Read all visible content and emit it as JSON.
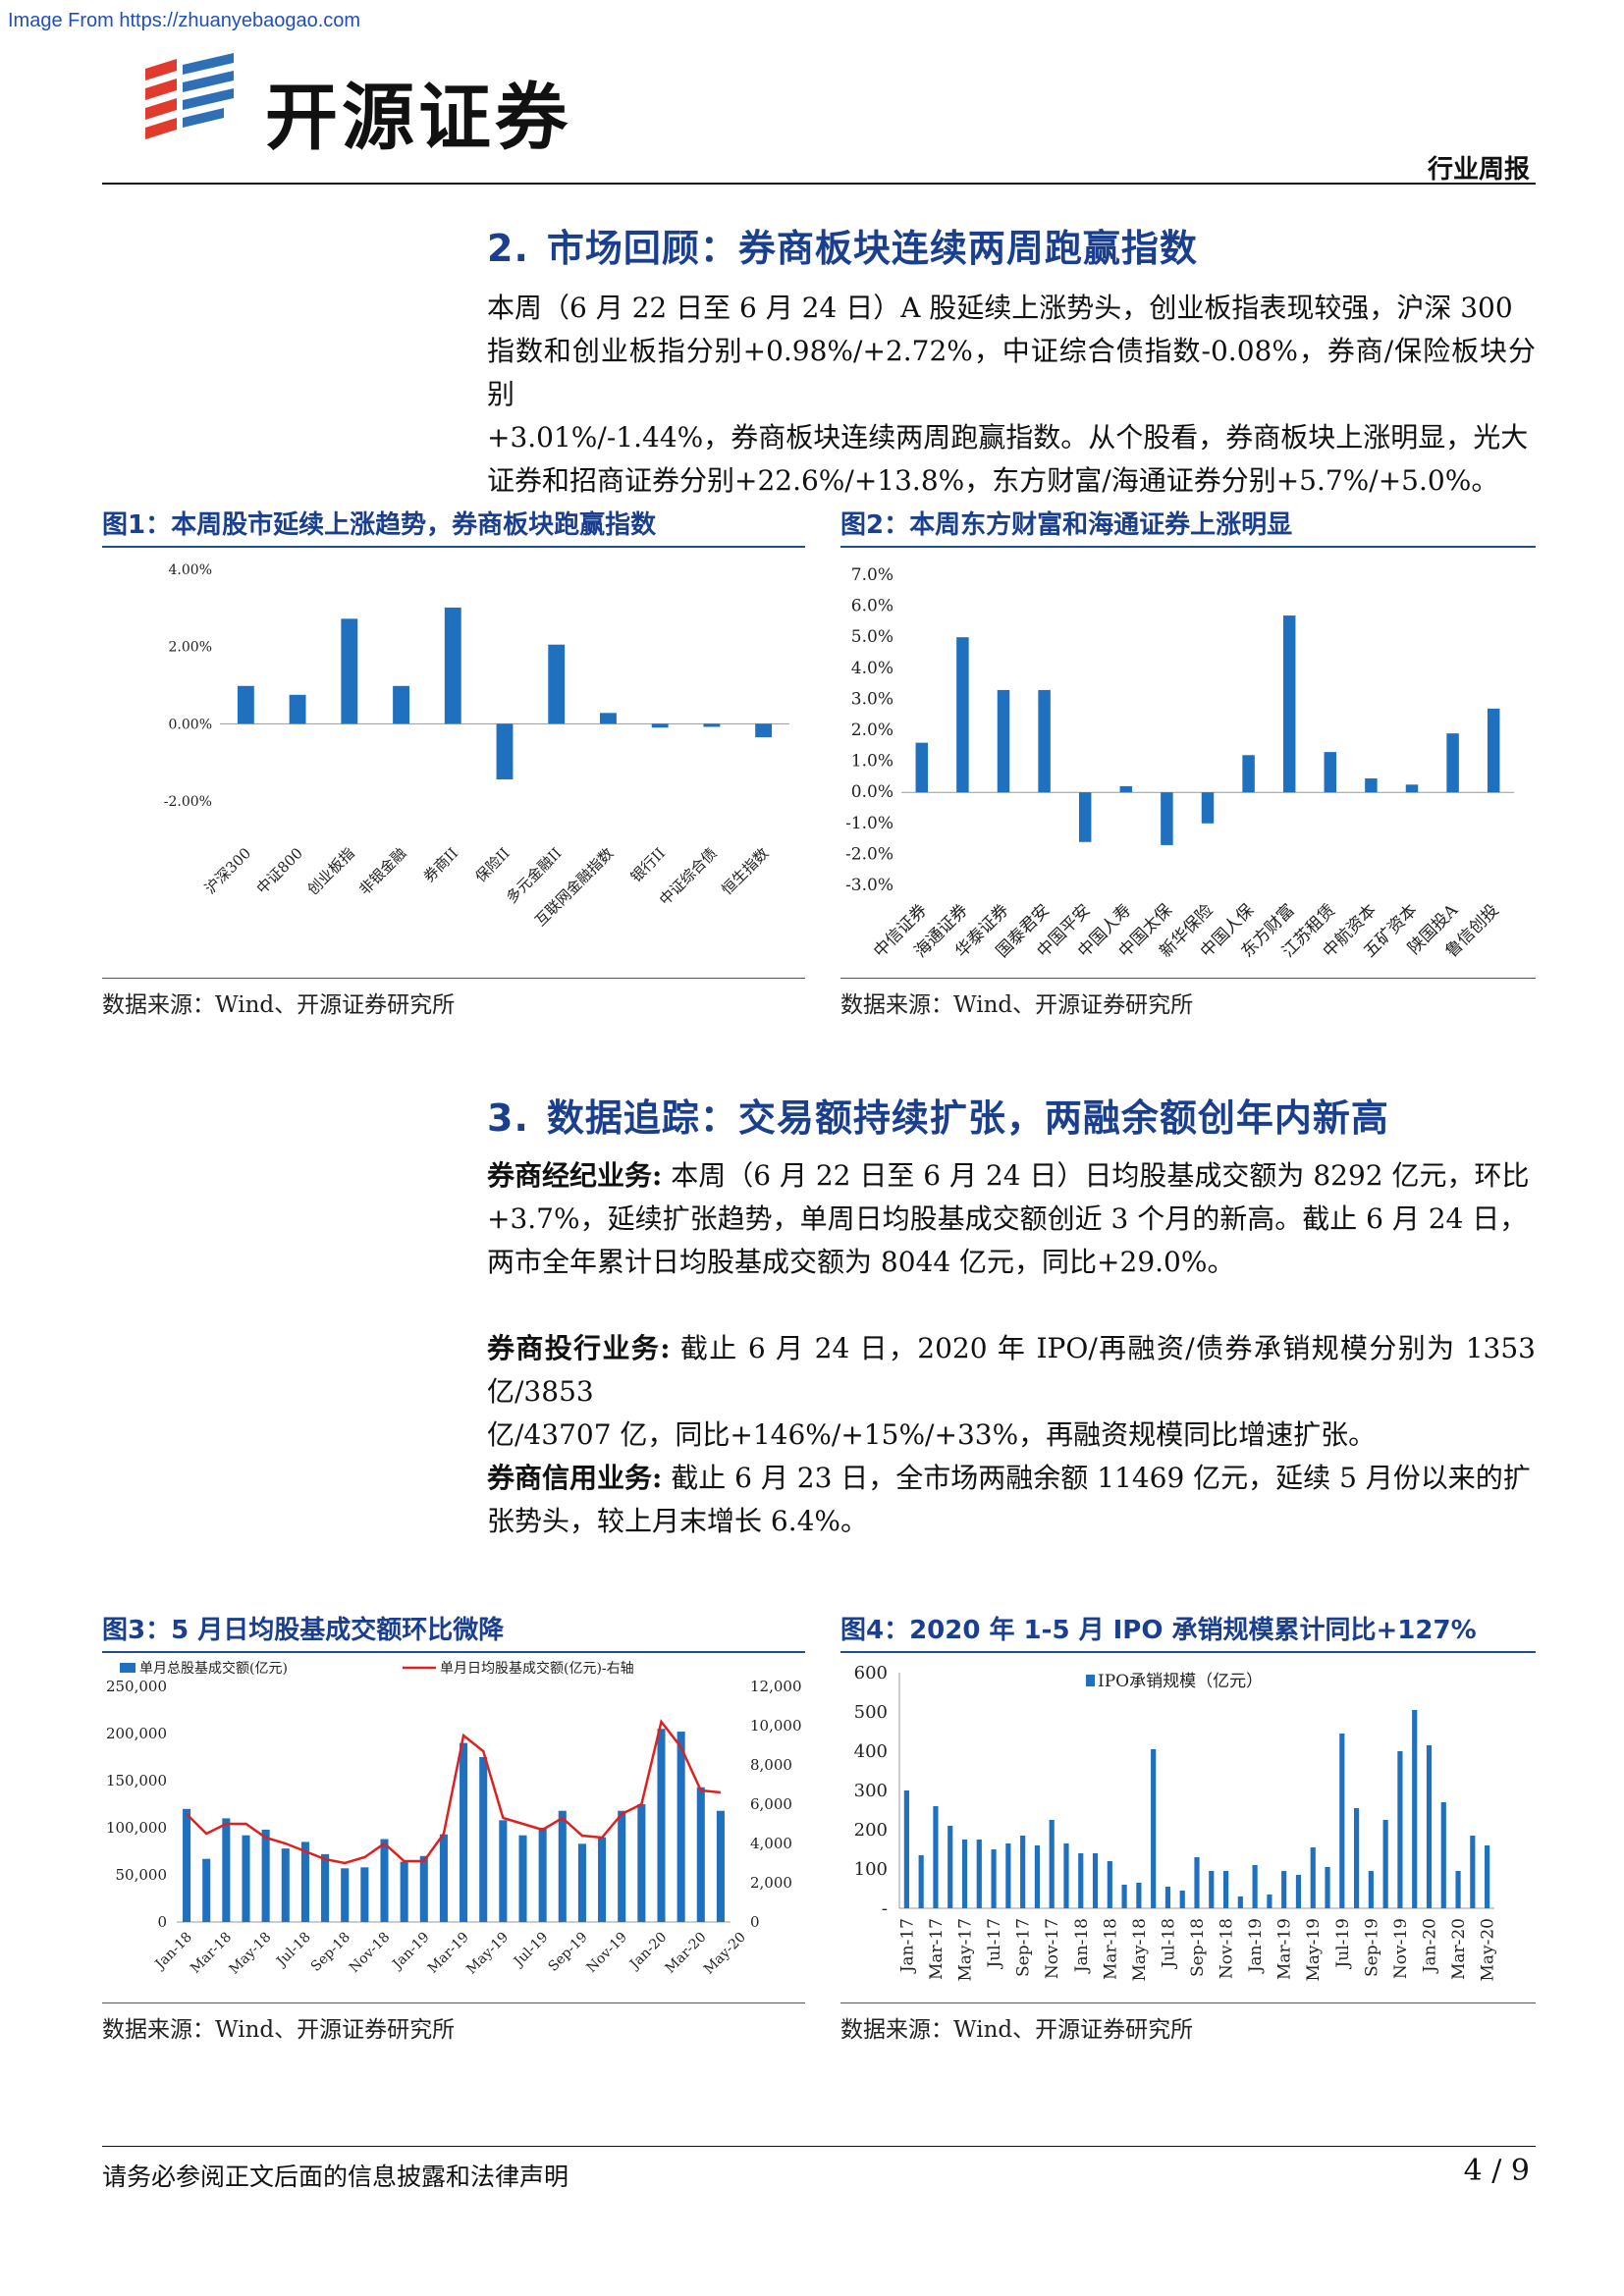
{
  "watermark": "Image From https://zhuanyebaogao.com",
  "header": {
    "logo_text": "开源证券",
    "report_type": "行业周报"
  },
  "section2": {
    "number": "2.",
    "title": "市场回顾：券商板块连续两周跑赢指数",
    "lines": [
      "本周（6 月 22 日至 6 月 24 日）A 股延续上涨势头，创业板指表现较强，沪深 300",
      "指数和创业板指分别+0.98%/+2.72%，中证综合债指数-0.08%，券商/保险板块分别",
      "+3.01%/-1.44%，券商板块连续两周跑赢指数。从个股看，券商板块上涨明显，光大",
      "证券和招商证券分别+22.6%/+13.8%，东方财富/海通证券分别+5.7%/+5.0%。"
    ]
  },
  "section3": {
    "number": "3.",
    "title": "数据追踪：交易额持续扩张，两融余额创年内新高",
    "brokerage_label": "券商经纪业务:",
    "brokerage_lines": [
      " 本周（6 月 22 日至 6 月 24 日）日均股基成交额为 8292 亿元，环比",
      "+3.7%，延续扩张趋势，单周日均股基成交额创近 3 个月的新高。截止 6 月 24 日，",
      "两市全年累计日均股基成交额为 8044 亿元，同比+29.0%。"
    ],
    "ib_label": "券商投行业务:",
    "ib_lines": [
      " 截止 6 月 24 日，2020 年 IPO/再融资/债券承销规模分别为 1353 亿/3853",
      "亿/43707 亿，同比+146%/+15%/+33%，再融资规模同比增速扩张。"
    ],
    "credit_label": "券商信用业务:",
    "credit_lines": [
      " 截止 6 月 23 日，全市场两融余额 11469 亿元，延续 5 月份以来的扩",
      "张势头，较上月末增长 6.4%。"
    ]
  },
  "figures": {
    "fig1_title": "图1：本周股市延续上涨趋势，券商板块跑赢指数",
    "fig2_title": "图2：本周东方财富和海通证券上涨明显",
    "fig3_title": "图3：5 月日均股基成交额环比微降",
    "fig4_title": "图4：2020 年 1-5 月 IPO 承销规模累计同比+127%",
    "source": "数据来源：Wind、开源证券研究所"
  },
  "colors": {
    "bar": "#1f70bf",
    "line": "#e02020",
    "title": "#1a3f8f"
  },
  "chart_data": [
    {
      "id": "fig1",
      "type": "bar",
      "categories": [
        "沪深300",
        "中证800",
        "创业板指",
        "非银金融",
        "券商II",
        "保险II",
        "多元金融II",
        "互联网金融指数",
        "银行II",
        "中证综合债",
        "恒生指数"
      ],
      "values": [
        0.98,
        0.75,
        2.72,
        0.98,
        3.01,
        -1.44,
        2.05,
        0.28,
        -0.1,
        -0.08,
        -0.35
      ],
      "ylim": [
        -2.0,
        4.0
      ],
      "yticks": [
        "4.00%",
        "2.00%",
        "0.00%",
        "-2.00%"
      ],
      "ytick_values": [
        4,
        2,
        0,
        -2
      ]
    },
    {
      "id": "fig2",
      "type": "bar",
      "categories": [
        "中信证券",
        "海通证券",
        "华泰证券",
        "国泰君安",
        "中国平安",
        "中国人寿",
        "中国太保",
        "新华保险",
        "中国人保",
        "东方财富",
        "江苏租赁",
        "中航资本",
        "五矿资本",
        "陕国投A",
        "鲁信创投"
      ],
      "values": [
        1.6,
        5.0,
        3.3,
        3.3,
        -1.6,
        0.2,
        -1.7,
        -1.0,
        1.2,
        5.7,
        1.3,
        0.45,
        0.25,
        1.9,
        2.7
      ],
      "ylim": [
        -3.0,
        7.0
      ],
      "yticks": [
        "7.0%",
        "6.0%",
        "5.0%",
        "4.0%",
        "3.0%",
        "2.0%",
        "1.0%",
        "0.0%",
        "-1.0%",
        "-2.0%",
        "-3.0%"
      ],
      "ytick_values": [
        7,
        6,
        5,
        4,
        3,
        2,
        1,
        0,
        -1,
        -2,
        -3
      ]
    },
    {
      "id": "fig3",
      "type": "bar",
      "series": [
        {
          "name": "单月总股基成交额(亿元)",
          "type": "bar",
          "axis": "left",
          "values": [
            120000,
            67000,
            110000,
            92000,
            98000,
            78000,
            85000,
            72000,
            57000,
            58000,
            88000,
            64000,
            70000,
            93000,
            190000,
            175000,
            108000,
            92000,
            100000,
            118000,
            83000,
            90000,
            118000,
            125000,
            205000,
            202000,
            143000,
            118000
          ]
        },
        {
          "name": "单月日均股基成交额(亿元)-右轴",
          "type": "line",
          "axis": "right",
          "values": [
            5500,
            4500,
            5000,
            5000,
            4300,
            4000,
            3600,
            3200,
            3000,
            3300,
            4000,
            3100,
            3100,
            4500,
            9500,
            8700,
            5300,
            5000,
            4700,
            5300,
            4400,
            4300,
            5500,
            6000,
            10200,
            8900,
            6700,
            6600
          ]
        }
      ],
      "x_labels": [
        "Jan-18",
        "Mar-18",
        "May-18",
        "Jul-18",
        "Sep-18",
        "Nov-18",
        "Jan-19",
        "Mar-19",
        "May-19",
        "Jul-19",
        "Sep-19",
        "Nov-19",
        "Jan-20",
        "Mar-20",
        "May-20"
      ],
      "ylim_left": [
        0,
        250000
      ],
      "ylim_right": [
        0,
        12000
      ],
      "yticks_left": [
        "250,000",
        "200,000",
        "150,000",
        "100,000",
        "50,000",
        "0"
      ],
      "ytick_values_left": [
        250000,
        200000,
        150000,
        100000,
        50000,
        0
      ],
      "yticks_right": [
        "12,000",
        "10,000",
        "8,000",
        "6,000",
        "4,000",
        "2,000",
        "0"
      ],
      "ytick_values_right": [
        12000,
        10000,
        8000,
        6000,
        4000,
        2000,
        0
      ]
    },
    {
      "id": "fig4",
      "type": "bar",
      "series": [
        {
          "name": "IPO承销规模（亿元）",
          "values": [
            300,
            135,
            260,
            210,
            175,
            175,
            150,
            165,
            185,
            160,
            225,
            165,
            140,
            140,
            120,
            60,
            65,
            405,
            55,
            45,
            130,
            95,
            95,
            30,
            110,
            35,
            95,
            85,
            155,
            105,
            445,
            255,
            95,
            225,
            400,
            505,
            415,
            270,
            95,
            185,
            160
          ]
        }
      ],
      "x_labels": [
        "Jan-17",
        "Mar-17",
        "May-17",
        "Jul-17",
        "Sep-17",
        "Nov-17",
        "Jan-18",
        "Mar-18",
        "May-18",
        "Jul-18",
        "Sep-18",
        "Nov-18",
        "Jan-19",
        "Mar-19",
        "May-19",
        "Jul-19",
        "Sep-19",
        "Nov-19",
        "Jan-20",
        "Mar-20",
        "May-20"
      ],
      "ylim": [
        0,
        600
      ],
      "yticks": [
        "600",
        "500",
        "400",
        "300",
        "200",
        "100",
        "-"
      ],
      "ytick_values": [
        600,
        500,
        400,
        300,
        200,
        100,
        0
      ]
    }
  ],
  "footer": {
    "disclaimer": "请务必参阅正文后面的信息披露和法律声明",
    "page": "4 / 9"
  }
}
